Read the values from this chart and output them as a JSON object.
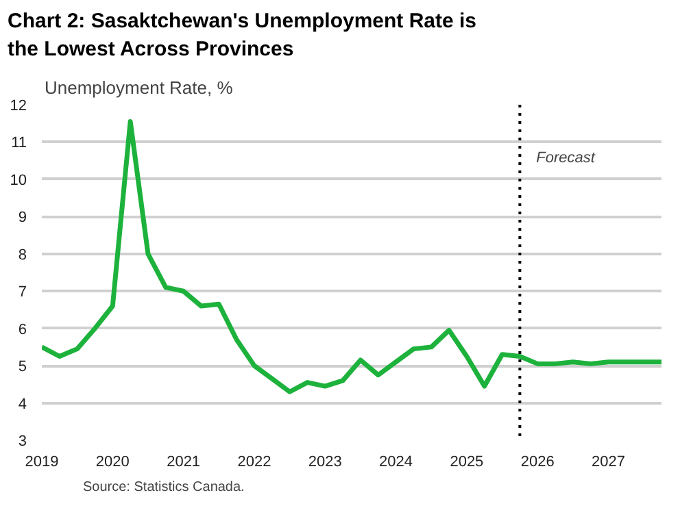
{
  "chart_data": {
    "type": "line",
    "title": "Chart 2: Sasaktchewan's Unemployment Rate is the Lowest Across Provinces",
    "ylabel": "Unemployment Rate, %",
    "x": [
      2019,
      2019.25,
      2019.5,
      2019.75,
      2020,
      2020.25,
      2020.5,
      2020.75,
      2021,
      2021.25,
      2021.5,
      2021.75,
      2022,
      2022.25,
      2022.5,
      2022.75,
      2023,
      2023.25,
      2023.5,
      2023.75,
      2024,
      2024.25,
      2024.5,
      2024.75,
      2025,
      2025.25,
      2025.5,
      2025.75,
      2026,
      2026.25,
      2026.5,
      2026.75,
      2027,
      2027.25,
      2027.5,
      2027.75
    ],
    "series": [
      {
        "color": "#1db23c",
        "values": [
          5.5,
          5.25,
          5.45,
          6.0,
          6.6,
          11.55,
          8.0,
          7.1,
          7.0,
          6.6,
          6.65,
          5.7,
          5.0,
          4.65,
          4.3,
          4.55,
          4.45,
          4.6,
          5.15,
          4.75,
          5.1,
          5.45,
          5.5,
          5.95,
          5.25,
          4.45,
          5.3,
          5.25,
          5.05,
          5.05,
          5.1,
          5.05,
          5.1,
          5.1,
          5.1,
          5.1
        ]
      }
    ],
    "xlim": [
      2019,
      2027.75
    ],
    "xticks": [
      2019,
      2020,
      2021,
      2022,
      2023,
      2024,
      2025,
      2026,
      2027
    ],
    "ylim": [
      3,
      12
    ],
    "yticks": [
      3,
      4,
      5,
      6,
      7,
      8,
      9,
      10,
      11,
      12
    ],
    "grid": "y",
    "ref_lines": [
      {
        "axis": "x",
        "value": 2025.75,
        "label": "Forecast",
        "color": "#000000",
        "line_style": "dotted"
      }
    ],
    "annotations": [
      "Source: Statistics Canada."
    ]
  }
}
